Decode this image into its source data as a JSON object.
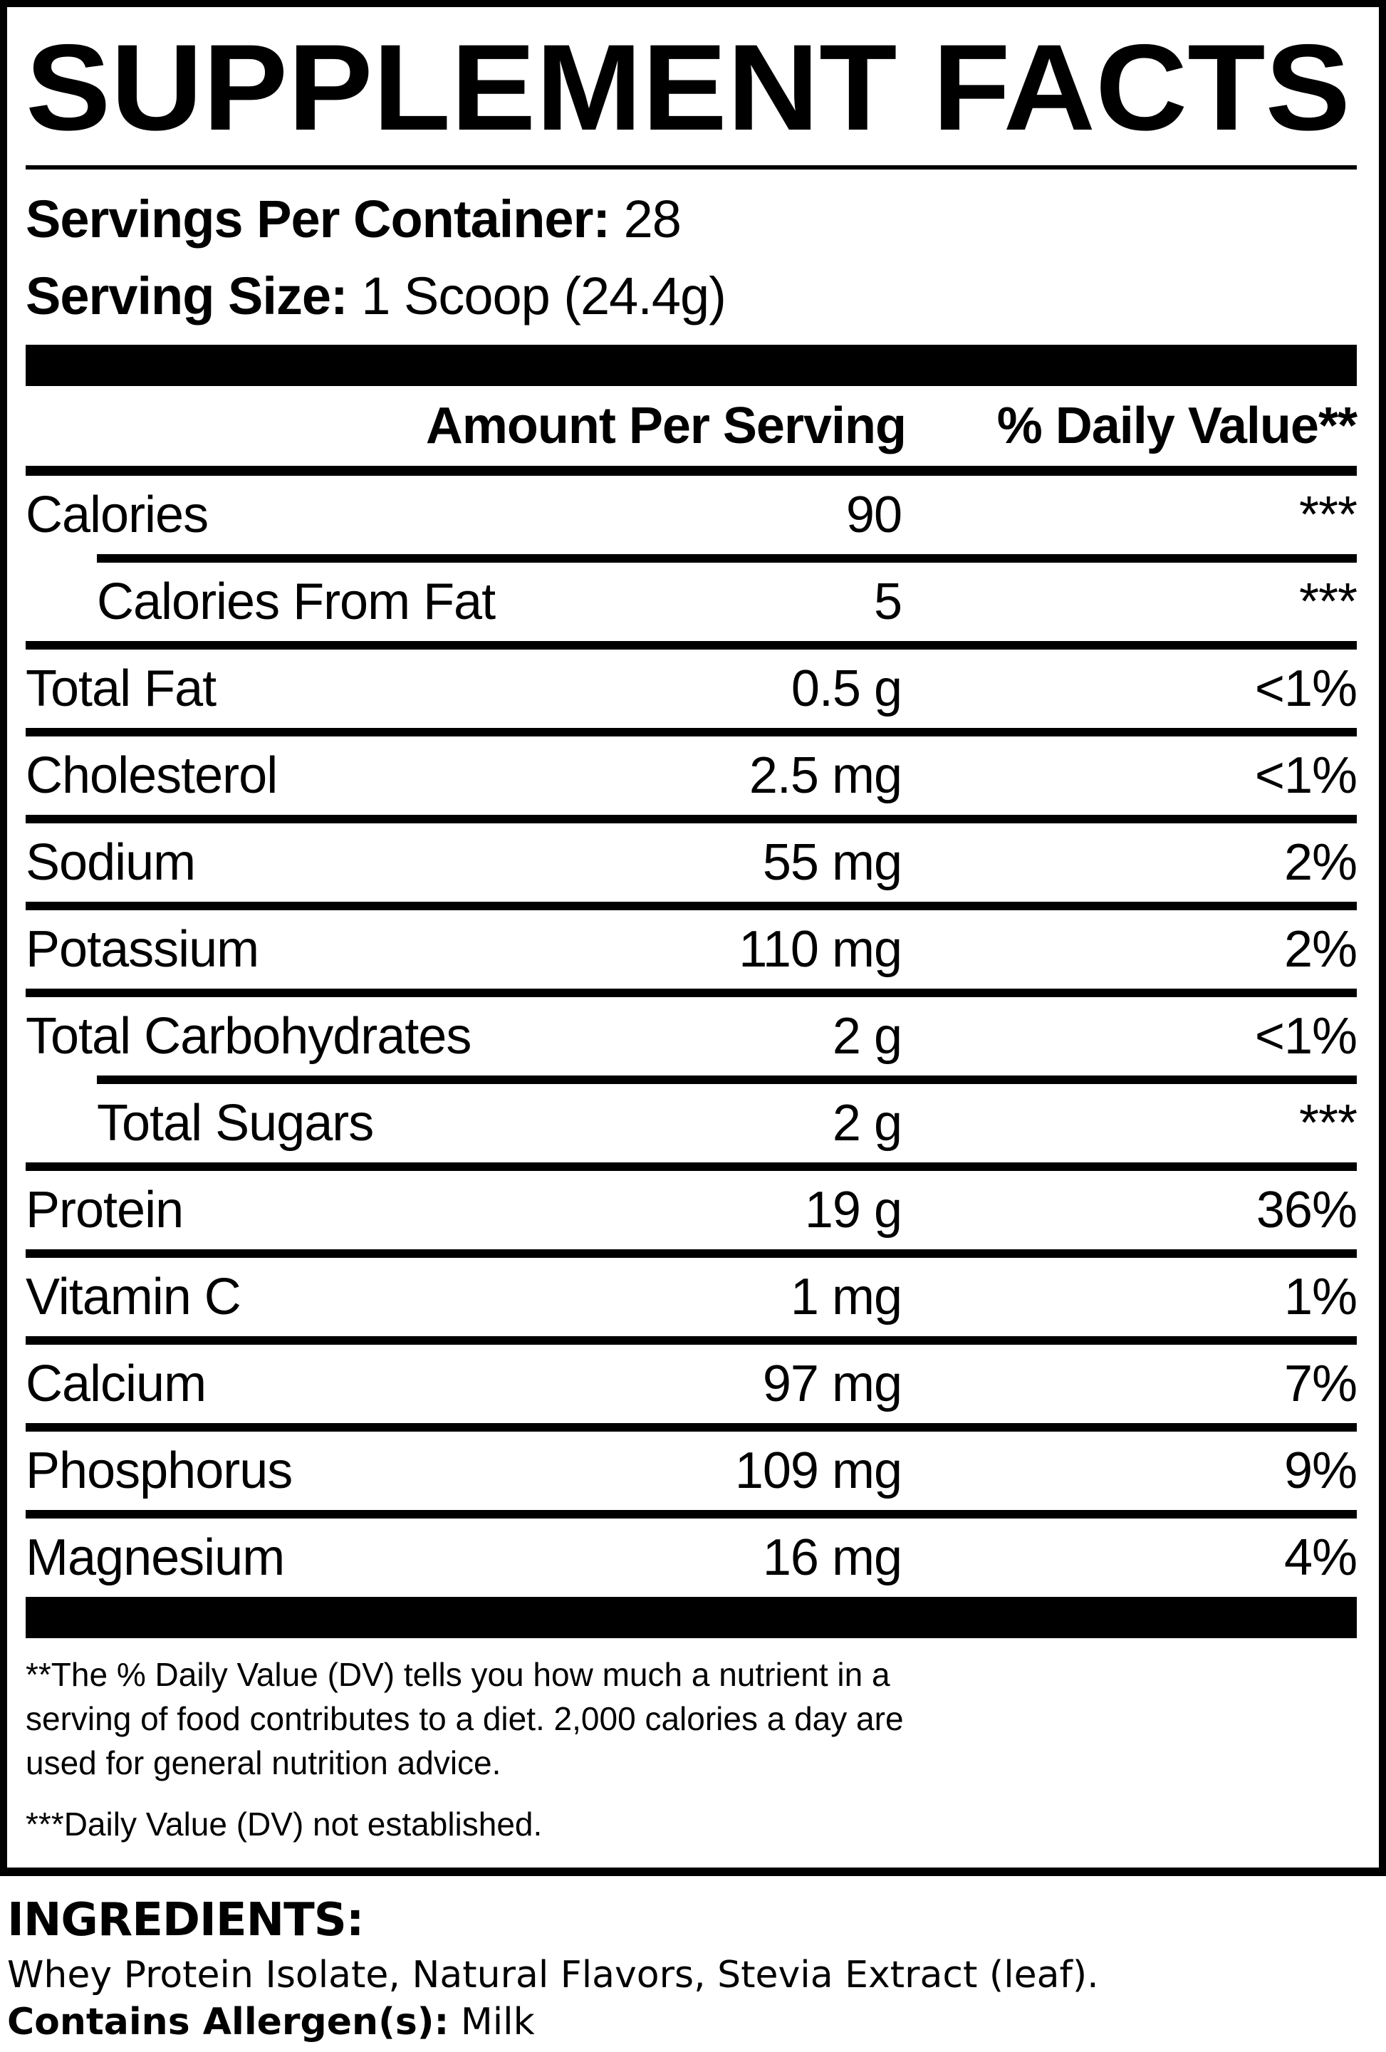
{
  "colors": {
    "ink": "#000000",
    "paper": "#ffffff"
  },
  "title": "SUPPLEMENT FACTS",
  "serving_info": {
    "servings_per_container_label": "Servings Per Container:",
    "servings_per_container_value": " 28",
    "serving_size_label": "Serving Size:",
    "serving_size_value": " 1 Scoop (24.4g)"
  },
  "table": {
    "amount_header": "Amount Per Serving",
    "dv_header": "% Daily Value**",
    "rows": [
      {
        "name": "Calories",
        "amount": "90",
        "dv": "***",
        "indent": false,
        "sep": "indent"
      },
      {
        "name": "Calories From Fat",
        "amount": "5",
        "dv": "***",
        "indent": true,
        "sep": "full"
      },
      {
        "name": "Total Fat",
        "amount": "0.5 g",
        "dv": "<1%",
        "indent": false,
        "sep": "full"
      },
      {
        "name": "Cholesterol",
        "amount": "2.5 mg",
        "dv": "<1%",
        "indent": false,
        "sep": "full"
      },
      {
        "name": "Sodium",
        "amount": "55 mg",
        "dv": "2%",
        "indent": false,
        "sep": "full"
      },
      {
        "name": "Potassium",
        "amount": "110 mg",
        "dv": "2%",
        "indent": false,
        "sep": "full"
      },
      {
        "name": "Total Carbohydrates",
        "amount": "2 g",
        "dv": "<1%",
        "indent": false,
        "sep": "indent"
      },
      {
        "name": "Total Sugars",
        "amount": "2 g",
        "dv": "***",
        "indent": true,
        "sep": "full"
      },
      {
        "name": "Protein",
        "amount": "19 g",
        "dv": "36%",
        "indent": false,
        "sep": "full"
      },
      {
        "name": "Vitamin C",
        "amount": "1 mg",
        "dv": "1%",
        "indent": false,
        "sep": "full"
      },
      {
        "name": "Calcium",
        "amount": "97 mg",
        "dv": "7%",
        "indent": false,
        "sep": "full"
      },
      {
        "name": "Phosphorus",
        "amount": "109 mg",
        "dv": "9%",
        "indent": false,
        "sep": "full"
      },
      {
        "name": "Magnesium",
        "amount": "16 mg",
        "dv": "4%",
        "indent": false,
        "sep": "none"
      }
    ]
  },
  "footnotes": {
    "daily_value_note": "**The % Daily Value (DV) tells you how much a nutrient in a\nserving of food contributes to a diet. 2,000 calories a day are\nused for general nutrition advice.",
    "not_established_note": "***Daily Value (DV) not established."
  },
  "ingredients": {
    "heading": "INGREDIENTS:",
    "list": "Whey Protein Isolate, Natural Flavors, Stevia Extract (leaf).",
    "allergen_label": "Contains Allergen(s):",
    "allergen_value": " Milk"
  }
}
